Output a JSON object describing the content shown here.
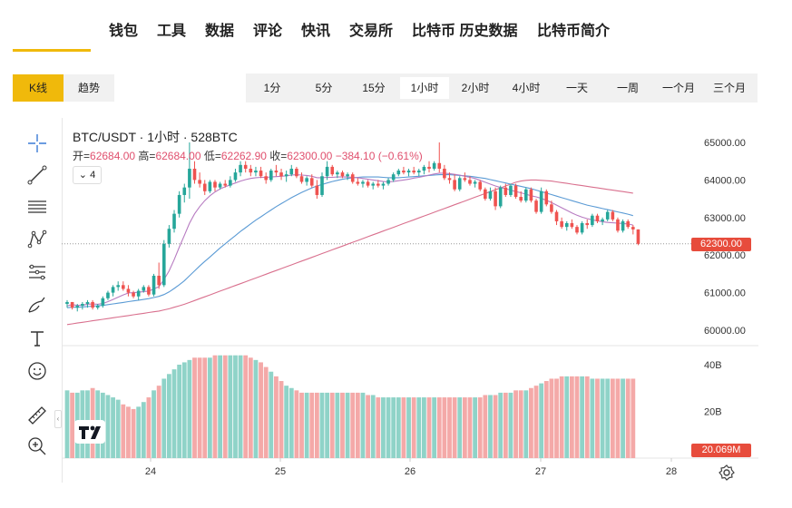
{
  "nav": {
    "items": [
      "钱包",
      "工具",
      "数据",
      "评论",
      "快讯",
      "交易所",
      "比特币 历史数据",
      "比特币简介"
    ]
  },
  "chart_tabs": {
    "kline": "K线",
    "trend": "趋势",
    "active": "K线"
  },
  "intervals": {
    "items": [
      "1分",
      "5分",
      "15分",
      "1小时",
      "2小时",
      "4小时",
      "一天",
      "一周",
      "一个月",
      "三个月"
    ],
    "active": "1小时"
  },
  "tools": [
    "crosshair-icon",
    "trend-line-icon",
    "horizontal-lines-icon",
    "pattern-icon",
    "fib-levels-icon",
    "brush-icon",
    "text-icon",
    "emoji-icon",
    "ruler-icon",
    "zoom-in-icon"
  ],
  "legend": {
    "title": "BTC/USDT · 1小时 · 528BTC",
    "open_label": "开=",
    "open": "62684.00",
    "high_label": "高=",
    "high": "62684.00",
    "low_label": "低=",
    "low": "62262.90",
    "close_label": "收=",
    "close": "62300.00",
    "change": "−384.10 (−0.61%)",
    "indicator_count": "4"
  },
  "price_axis": {
    "labels": [
      "65000.00",
      "64000.00",
      "63000.00",
      "62000.00",
      "61000.00",
      "60000.00"
    ],
    "current": "62300.00"
  },
  "volume_axis": {
    "labels": [
      "40B",
      "20B"
    ],
    "current": "20.069M"
  },
  "time_axis": {
    "labels": [
      "24",
      "25",
      "26",
      "27",
      "28"
    ]
  },
  "colors": {
    "up": "#26a69a",
    "down": "#ef5350",
    "up_volume": "#8fd3c8",
    "down_volume": "#f4a9a8",
    "accent": "#f0b90b",
    "ma_fast": "#b77bc1",
    "ma_mid": "#5b9bd5",
    "ma_slow": "#d9708e"
  },
  "chart_data": {
    "type": "candlestick",
    "title": "BTC/USDT · 1小时 · 528BTC",
    "ylim": [
      59600,
      65300
    ],
    "candles": [
      [
        60700,
        60800,
        60600,
        60750
      ],
      [
        60750,
        60750,
        60550,
        60600
      ],
      [
        60600,
        60700,
        60500,
        60650
      ],
      [
        60650,
        60750,
        60550,
        60700
      ],
      [
        60700,
        60800,
        60600,
        60750
      ],
      [
        60750,
        60800,
        60550,
        60600
      ],
      [
        60600,
        60700,
        60550,
        60650
      ],
      [
        60650,
        60900,
        60600,
        60850
      ],
      [
        60850,
        61050,
        60800,
        61000
      ],
      [
        61000,
        61200,
        60900,
        61150
      ],
      [
        61150,
        61300,
        61050,
        61200
      ],
      [
        61200,
        61300,
        61050,
        61100
      ],
      [
        61100,
        61200,
        60900,
        61000
      ],
      [
        61000,
        61050,
        60850,
        60900
      ],
      [
        60900,
        61100,
        60800,
        61050
      ],
      [
        61050,
        61200,
        61000,
        61150
      ],
      [
        61150,
        61200,
        60900,
        60950
      ],
      [
        60950,
        61500,
        60900,
        61450
      ],
      [
        61450,
        61800,
        61100,
        61200
      ],
      [
        61200,
        62400,
        61150,
        62300
      ],
      [
        62300,
        62800,
        62200,
        62700
      ],
      [
        62700,
        63200,
        62600,
        63100
      ],
      [
        63100,
        63700,
        63000,
        63600
      ],
      [
        63600,
        63900,
        63400,
        63800
      ],
      [
        63800,
        65000,
        63500,
        64300
      ],
      [
        64300,
        64500,
        63900,
        64000
      ],
      [
        64000,
        64200,
        63800,
        63900
      ],
      [
        63900,
        64000,
        63600,
        63700
      ],
      [
        63700,
        64000,
        63650,
        63950
      ],
      [
        63950,
        64000,
        63700,
        63800
      ],
      [
        63800,
        63950,
        63750,
        63900
      ],
      [
        63900,
        64000,
        63800,
        63850
      ],
      [
        63850,
        64100,
        63800,
        64000
      ],
      [
        64000,
        64300,
        63950,
        64200
      ],
      [
        64200,
        64500,
        64100,
        64400
      ],
      [
        64400,
        64500,
        64200,
        64300
      ],
      [
        64300,
        64400,
        64100,
        64200
      ],
      [
        64200,
        64350,
        64100,
        64250
      ],
      [
        64250,
        64350,
        64050,
        64100
      ],
      [
        64100,
        64200,
        63900,
        64000
      ],
      [
        64000,
        64300,
        63950,
        64250
      ],
      [
        64250,
        64400,
        64100,
        64200
      ],
      [
        64200,
        64300,
        64000,
        64100
      ],
      [
        64100,
        64250,
        63950,
        64150
      ],
      [
        64150,
        64400,
        64100,
        64300
      ],
      [
        64300,
        64350,
        64050,
        64100
      ],
      [
        64100,
        64200,
        63900,
        63950
      ],
      [
        63950,
        64100,
        63850,
        64050
      ],
      [
        64050,
        64150,
        63800,
        63850
      ],
      [
        63850,
        64000,
        63500,
        63600
      ],
      [
        63600,
        64200,
        63550,
        64100
      ],
      [
        64100,
        64500,
        64000,
        64350
      ],
      [
        64350,
        64400,
        64100,
        64150
      ],
      [
        64150,
        64250,
        64050,
        64200
      ],
      [
        64200,
        64250,
        64050,
        64100
      ],
      [
        64100,
        64200,
        64000,
        64150
      ],
      [
        64150,
        64200,
        63900,
        63950
      ],
      [
        63950,
        64050,
        63850,
        63900
      ],
      [
        63900,
        64000,
        63800,
        63950
      ],
      [
        63950,
        64000,
        63800,
        63850
      ],
      [
        63850,
        63950,
        63750,
        63900
      ],
      [
        63900,
        64000,
        63800,
        63850
      ],
      [
        63850,
        63950,
        63750,
        63900
      ],
      [
        63900,
        64050,
        63850,
        64000
      ],
      [
        64000,
        64200,
        63950,
        64150
      ],
      [
        64150,
        64300,
        64100,
        64250
      ],
      [
        64250,
        64350,
        64150,
        64200
      ],
      [
        64200,
        64300,
        64100,
        64250
      ],
      [
        64250,
        64350,
        64150,
        64200
      ],
      [
        64200,
        64300,
        64100,
        64250
      ],
      [
        64250,
        64400,
        64150,
        64350
      ],
      [
        64350,
        64500,
        64200,
        64300
      ],
      [
        64300,
        64500,
        64250,
        64450
      ],
      [
        64450,
        65000,
        64200,
        64300
      ],
      [
        64300,
        64400,
        64000,
        64050
      ],
      [
        64050,
        64200,
        63900,
        64000
      ],
      [
        64000,
        64150,
        63700,
        63750
      ],
      [
        63750,
        64100,
        63700,
        64050
      ],
      [
        64050,
        64200,
        63950,
        64000
      ],
      [
        64000,
        64100,
        63850,
        63900
      ],
      [
        63900,
        64000,
        63800,
        63950
      ],
      [
        63950,
        64000,
        63700,
        63750
      ],
      [
        63750,
        63800,
        63450,
        63500
      ],
      [
        63500,
        63800,
        63450,
        63700
      ],
      [
        63700,
        63800,
        63200,
        63300
      ],
      [
        63300,
        63850,
        63250,
        63800
      ],
      [
        63800,
        63900,
        63550,
        63600
      ],
      [
        63600,
        63900,
        63550,
        63850
      ],
      [
        63850,
        63900,
        63500,
        63550
      ],
      [
        63550,
        63700,
        63400,
        63450
      ],
      [
        63450,
        63800,
        63400,
        63750
      ],
      [
        63750,
        63800,
        63400,
        63450
      ],
      [
        63450,
        63500,
        63100,
        63150
      ],
      [
        63150,
        63800,
        63100,
        63700
      ],
      [
        63700,
        63750,
        63300,
        63350
      ],
      [
        63350,
        63450,
        63100,
        63150
      ],
      [
        63150,
        63200,
        62800,
        62900
      ],
      [
        62900,
        63000,
        62700,
        62750
      ],
      [
        62750,
        62900,
        62650,
        62850
      ],
      [
        62850,
        62950,
        62700,
        62750
      ],
      [
        62750,
        62800,
        62550,
        62600
      ],
      [
        62600,
        62900,
        62550,
        62850
      ],
      [
        62850,
        62950,
        62700,
        62800
      ],
      [
        62800,
        63100,
        62750,
        63050
      ],
      [
        63050,
        63100,
        62850,
        62900
      ],
      [
        62900,
        63000,
        62800,
        62950
      ],
      [
        62950,
        63200,
        62900,
        63150
      ],
      [
        63150,
        63200,
        62900,
        62950
      ],
      [
        62950,
        63000,
        62600,
        62650
      ],
      [
        62650,
        62950,
        62600,
        62900
      ],
      [
        62900,
        62950,
        62700,
        62750
      ],
      [
        62750,
        62800,
        62550,
        62684
      ],
      [
        62684,
        62684,
        62263,
        62300
      ]
    ],
    "ma_fast": [
      60650,
      60680,
      60660,
      60670,
      60690,
      60700,
      60690,
      60710,
      60760,
      60820,
      60880,
      60940,
      60990,
      61000,
      61010,
      61030,
      61040,
      61100,
      61160,
      61350,
      61580,
      61880,
      62210,
      62530,
      62850,
      63100,
      63290,
      63450,
      63580,
      63680,
      63760,
      63820,
      63870,
      63920,
      63970,
      64010,
      64040,
      64060,
      64070,
      64070,
      64080,
      64090,
      64100,
      64110,
      64130,
      64140,
      64130,
      64120,
      64100,
      64060,
      64060,
      64070,
      64070,
      64080,
      64080,
      64080,
      64070,
      64060,
      64040,
      64020,
      64000,
      63980,
      63960,
      63950,
      63960,
      63980,
      64000,
      64020,
      64050,
      64070,
      64100,
      64130,
      64160,
      64180,
      64180,
      64170,
      64150,
      64130,
      64100,
      64070,
      64040,
      63990,
      63940,
      63890,
      63840,
      63800,
      63770,
      63730,
      63690,
      63660,
      63620,
      63580,
      63550,
      63510,
      63460,
      63400,
      63330,
      63260,
      63190,
      63120,
      63060,
      63010,
      62970,
      62940,
      62910,
      62890,
      62870,
      62860,
      62850,
      62840,
      62830,
      62800
    ],
    "ma_mid": [
      60600,
      60610,
      60610,
      60620,
      60630,
      60640,
      60650,
      60660,
      60680,
      60700,
      60720,
      60740,
      60760,
      60780,
      60800,
      60820,
      60840,
      60870,
      60900,
      60950,
      61020,
      61110,
      61210,
      61320,
      61450,
      61580,
      61710,
      61830,
      61950,
      62070,
      62190,
      62300,
      62410,
      62520,
      62630,
      62730,
      62830,
      62930,
      63020,
      63110,
      63200,
      63290,
      63370,
      63450,
      63530,
      63600,
      63670,
      63730,
      63790,
      63840,
      63880,
      63920,
      63960,
      63990,
      64020,
      64040,
      64060,
      64070,
      64080,
      64080,
      64080,
      64080,
      64070,
      64060,
      64060,
      64060,
      64070,
      64080,
      64090,
      64100,
      64110,
      64120,
      64130,
      64140,
      64140,
      64140,
      64130,
      64120,
      64110,
      64100,
      64080,
      64060,
      64040,
      64010,
      63980,
      63950,
      63920,
      63890,
      63860,
      63830,
      63800,
      63770,
      63730,
      63690,
      63650,
      63610,
      63570,
      63530,
      63490,
      63450,
      63410,
      63370,
      63330,
      63300,
      63270,
      63240,
      63210,
      63180,
      63150,
      63120,
      63090,
      63050
    ],
    "ma_slow": [
      60150,
      60170,
      60190,
      60210,
      60230,
      60250,
      60270,
      60290,
      60310,
      60330,
      60350,
      60370,
      60390,
      60410,
      60430,
      60450,
      60470,
      60490,
      60510,
      60540,
      60570,
      60610,
      60650,
      60690,
      60740,
      60790,
      60840,
      60890,
      60940,
      60990,
      61040,
      61090,
      61140,
      61190,
      61240,
      61290,
      61340,
      61390,
      61440,
      61490,
      61540,
      61590,
      61640,
      61690,
      61740,
      61790,
      61840,
      61890,
      61940,
      61990,
      62040,
      62090,
      62140,
      62190,
      62240,
      62290,
      62340,
      62390,
      62440,
      62490,
      62540,
      62590,
      62640,
      62690,
      62740,
      62790,
      62840,
      62890,
      62940,
      62990,
      63040,
      63090,
      63140,
      63190,
      63240,
      63290,
      63340,
      63390,
      63440,
      63490,
      63540,
      63590,
      63640,
      63690,
      63740,
      63790,
      63840,
      63890,
      63940,
      63970,
      63990,
      64000,
      64000,
      63990,
      63980,
      63970,
      63950,
      63930,
      63910,
      63890,
      63870,
      63850,
      63830,
      63810,
      63790,
      63770,
      63750,
      63730,
      63710,
      63690,
      63670,
      63650
    ],
    "volume_ylim": [
      0,
      48
    ],
    "volume": [
      29,
      28,
      28,
      29,
      29,
      30,
      29,
      28,
      27,
      26,
      25,
      23,
      22,
      21,
      22,
      24,
      26,
      29,
      31,
      34,
      36,
      38,
      40,
      41,
      42,
      43,
      43,
      43,
      43,
      44,
      44,
      44,
      44,
      44,
      44,
      44,
      43,
      42,
      41,
      39,
      37,
      35,
      33,
      31,
      30,
      29,
      28,
      28,
      28,
      28,
      28,
      28,
      28,
      28,
      28,
      28,
      28,
      28,
      28,
      27,
      27,
      26,
      26,
      26,
      26,
      26,
      26,
      26,
      26,
      26,
      26,
      26,
      26,
      26,
      26,
      26,
      26,
      26,
      26,
      26,
      26,
      26,
      27,
      27,
      27,
      28,
      28,
      28,
      29,
      29,
      29,
      30,
      31,
      32,
      33,
      34,
      34,
      35,
      35,
      35,
      35,
      35,
      35,
      34,
      34,
      34,
      34,
      34,
      34,
      34,
      34,
      34
    ],
    "x_ticks": [
      "24",
      "25",
      "26",
      "27",
      "28"
    ],
    "y_ticks": [
      65000,
      64000,
      63000,
      62000,
      61000,
      60000
    ]
  }
}
